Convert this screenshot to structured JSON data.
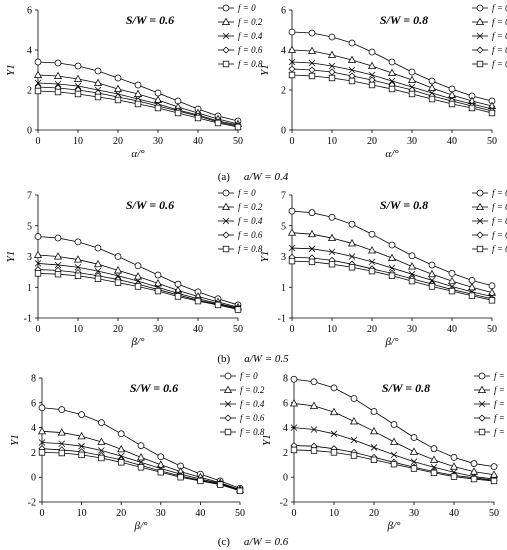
{
  "captions": [
    {
      "label": "(a)",
      "text": "a/W = 0.4"
    },
    {
      "label": "(b)",
      "text": "a/W = 0.5"
    },
    {
      "label": "(c)",
      "text": "a/W = 0.6"
    }
  ],
  "legend_entries": [
    "f = 0",
    "f = 0.2",
    "f = 0.4",
    "f = 0.6",
    "f = 0.8"
  ],
  "markers": [
    "circle",
    "triangle",
    "cross",
    "diamond",
    "square"
  ],
  "chart_data": [
    {
      "type": "line",
      "title": "S/W = 0.6",
      "xlabel": "α/°",
      "ylabel": "Y1",
      "xlim": [
        0,
        50
      ],
      "ylim": [
        0,
        6
      ],
      "xticks": [
        0,
        10,
        20,
        30,
        40,
        50
      ],
      "yticks": [
        0,
        2,
        4,
        6
      ],
      "legend": "top-right",
      "grid": false,
      "x": [
        0,
        5,
        10,
        15,
        20,
        25,
        30,
        35,
        40,
        45,
        50
      ],
      "series": [
        {
          "name": "f = 0",
          "values": [
            3.4,
            3.35,
            3.2,
            2.95,
            2.6,
            2.25,
            1.85,
            1.45,
            1.05,
            0.7,
            0.45
          ]
        },
        {
          "name": "f = 0.2",
          "values": [
            2.75,
            2.7,
            2.55,
            2.35,
            2.05,
            1.8,
            1.5,
            1.15,
            0.85,
            0.55,
            0.3
          ]
        },
        {
          "name": "f = 0.4",
          "values": [
            2.35,
            2.3,
            2.2,
            2.0,
            1.8,
            1.55,
            1.3,
            1.0,
            0.75,
            0.45,
            0.25
          ]
        },
        {
          "name": "f = 0.6",
          "values": [
            2.15,
            2.1,
            2.0,
            1.85,
            1.65,
            1.45,
            1.2,
            0.95,
            0.7,
            0.4,
            0.2
          ]
        },
        {
          "name": "f = 0.8",
          "values": [
            1.95,
            1.9,
            1.8,
            1.65,
            1.5,
            1.3,
            1.1,
            0.85,
            0.6,
            0.35,
            0.15
          ]
        }
      ]
    },
    {
      "type": "line",
      "title": "S/W = 0.8",
      "xlabel": "α/°",
      "ylabel": "Y1",
      "xlim": [
        0,
        50
      ],
      "ylim": [
        0,
        6
      ],
      "xticks": [
        0,
        10,
        20,
        30,
        40,
        50
      ],
      "yticks": [
        0,
        2,
        4,
        6
      ],
      "legend": "top-right",
      "grid": false,
      "x": [
        0,
        5,
        10,
        15,
        20,
        25,
        30,
        35,
        40,
        45,
        50
      ],
      "series": [
        {
          "name": "f = 0",
          "values": [
            4.9,
            4.85,
            4.65,
            4.35,
            3.9,
            3.4,
            2.9,
            2.45,
            2.05,
            1.7,
            1.45
          ]
        },
        {
          "name": "f = 0.2",
          "values": [
            4.0,
            3.95,
            3.75,
            3.5,
            3.2,
            2.85,
            2.5,
            2.1,
            1.75,
            1.45,
            1.2
          ]
        },
        {
          "name": "f = 0.4",
          "values": [
            3.4,
            3.35,
            3.2,
            3.0,
            2.75,
            2.45,
            2.15,
            1.85,
            1.55,
            1.3,
            1.05
          ]
        },
        {
          "name": "f = 0.6",
          "values": [
            3.05,
            3.0,
            2.9,
            2.7,
            2.5,
            2.25,
            2.0,
            1.7,
            1.45,
            1.2,
            0.95
          ]
        },
        {
          "name": "f = 0.8",
          "values": [
            2.75,
            2.7,
            2.6,
            2.45,
            2.25,
            2.05,
            1.8,
            1.55,
            1.3,
            1.1,
            0.85
          ]
        }
      ]
    },
    {
      "type": "line",
      "title": "S/W = 0.6",
      "xlabel": "β/°",
      "ylabel": "Y1",
      "xlim": [
        0,
        50
      ],
      "ylim": [
        -1,
        7
      ],
      "xticks": [
        0,
        10,
        20,
        30,
        40,
        50
      ],
      "yticks": [
        -1,
        1,
        3,
        5,
        7
      ],
      "legend": "top-right",
      "grid": false,
      "x": [
        0,
        5,
        10,
        15,
        20,
        25,
        30,
        35,
        40,
        45,
        50
      ],
      "series": [
        {
          "name": "f = 0",
          "values": [
            4.3,
            4.2,
            3.95,
            3.55,
            3.0,
            2.4,
            1.8,
            1.2,
            0.7,
            0.25,
            -0.15
          ]
        },
        {
          "name": "f = 0.2",
          "values": [
            3.1,
            3.0,
            2.8,
            2.5,
            2.1,
            1.7,
            1.25,
            0.8,
            0.4,
            0.05,
            -0.3
          ]
        },
        {
          "name": "f = 0.4",
          "values": [
            2.55,
            2.45,
            2.3,
            2.05,
            1.75,
            1.4,
            1.0,
            0.6,
            0.25,
            -0.05,
            -0.35
          ]
        },
        {
          "name": "f = 0.6",
          "values": [
            2.15,
            2.1,
            1.95,
            1.75,
            1.5,
            1.2,
            0.85,
            0.5,
            0.15,
            -0.1,
            -0.4
          ]
        },
        {
          "name": "f = 0.8",
          "values": [
            1.9,
            1.85,
            1.75,
            1.55,
            1.3,
            1.05,
            0.75,
            0.4,
            0.1,
            -0.15,
            -0.45
          ]
        }
      ]
    },
    {
      "type": "line",
      "title": "S/W = 0.8",
      "xlabel": "β/°",
      "ylabel": "Y1",
      "xlim": [
        0,
        50
      ],
      "ylim": [
        -1,
        7
      ],
      "xticks": [
        0,
        10,
        20,
        30,
        40,
        50
      ],
      "yticks": [
        -1,
        1,
        3,
        5,
        7
      ],
      "legend": "top-right",
      "grid": false,
      "x": [
        0,
        5,
        10,
        15,
        20,
        25,
        30,
        35,
        40,
        45,
        50
      ],
      "series": [
        {
          "name": "f = 0",
          "values": [
            5.95,
            5.85,
            5.55,
            5.1,
            4.45,
            3.75,
            3.05,
            2.45,
            1.9,
            1.45,
            1.1
          ]
        },
        {
          "name": "f = 0.2",
          "values": [
            4.55,
            4.45,
            4.2,
            3.85,
            3.4,
            2.9,
            2.35,
            1.85,
            1.4,
            1.0,
            0.65
          ]
        },
        {
          "name": "f = 0.4",
          "values": [
            3.55,
            3.5,
            3.3,
            3.0,
            2.65,
            2.25,
            1.85,
            1.45,
            1.05,
            0.7,
            0.4
          ]
        },
        {
          "name": "f = 0.6",
          "values": [
            2.95,
            2.9,
            2.75,
            2.5,
            2.2,
            1.9,
            1.55,
            1.2,
            0.85,
            0.55,
            0.25
          ]
        },
        {
          "name": "f = 0.8",
          "values": [
            2.7,
            2.65,
            2.5,
            2.3,
            2.05,
            1.75,
            1.4,
            1.05,
            0.75,
            0.45,
            0.15
          ]
        }
      ]
    },
    {
      "type": "line",
      "title": "S/W = 0.6",
      "xlabel": "β/°",
      "ylabel": "Y1",
      "xlim": [
        0,
        50
      ],
      "ylim": [
        -2,
        8
      ],
      "xticks": [
        0,
        10,
        20,
        30,
        40,
        50
      ],
      "yticks": [
        -2,
        0,
        2,
        4,
        6,
        8
      ],
      "legend": "top-right",
      "grid": false,
      "x": [
        0,
        5,
        10,
        15,
        20,
        25,
        30,
        35,
        40,
        45,
        50
      ],
      "series": [
        {
          "name": "f = 0",
          "values": [
            5.6,
            5.45,
            5.05,
            4.4,
            3.5,
            2.55,
            1.65,
            0.9,
            0.25,
            -0.3,
            -0.9
          ]
        },
        {
          "name": "f = 0.2",
          "values": [
            3.7,
            3.6,
            3.3,
            2.85,
            2.25,
            1.6,
            1.0,
            0.45,
            0.0,
            -0.45,
            -1.0
          ]
        },
        {
          "name": "f = 0.4",
          "values": [
            2.8,
            2.7,
            2.5,
            2.15,
            1.7,
            1.2,
            0.7,
            0.25,
            -0.15,
            -0.5,
            -1.0
          ]
        },
        {
          "name": "f = 0.6",
          "values": [
            2.3,
            2.2,
            2.05,
            1.75,
            1.4,
            0.95,
            0.5,
            0.1,
            -0.25,
            -0.55,
            -1.05
          ]
        },
        {
          "name": "f = 0.8",
          "values": [
            2.0,
            1.95,
            1.8,
            1.55,
            1.2,
            0.8,
            0.4,
            0.0,
            -0.3,
            -0.6,
            -1.1
          ]
        }
      ]
    },
    {
      "type": "line",
      "title": "S/W = 0.8",
      "xlabel": "β/°",
      "ylabel": "Y1",
      "xlim": [
        0,
        50
      ],
      "ylim": [
        -2,
        8
      ],
      "xticks": [
        0,
        10,
        20,
        30,
        40,
        50
      ],
      "yticks": [
        -2,
        0,
        2,
        4,
        6,
        8
      ],
      "legend": "top-right",
      "grid": false,
      "x": [
        0,
        5,
        10,
        15,
        20,
        25,
        30,
        35,
        40,
        45,
        50
      ],
      "series": [
        {
          "name": "f = 0",
          "values": [
            7.9,
            7.7,
            7.2,
            6.35,
            5.3,
            4.25,
            3.2,
            2.3,
            1.6,
            1.1,
            0.85
          ]
        },
        {
          "name": "f = 0.2",
          "values": [
            5.95,
            5.75,
            5.25,
            4.5,
            3.7,
            2.85,
            2.05,
            1.4,
            0.85,
            0.45,
            0.2
          ]
        },
        {
          "name": "f = 0.4",
          "values": [
            4.0,
            3.85,
            3.5,
            3.0,
            2.4,
            1.8,
            1.25,
            0.8,
            0.4,
            0.05,
            -0.15
          ]
        },
        {
          "name": "f = 0.6",
          "values": [
            2.55,
            2.5,
            2.3,
            2.0,
            1.6,
            1.2,
            0.8,
            0.45,
            0.15,
            -0.05,
            -0.25
          ]
        },
        {
          "name": "f = 0.8",
          "values": [
            2.2,
            2.15,
            2.0,
            1.75,
            1.4,
            1.05,
            0.7,
            0.35,
            0.05,
            -0.15,
            -0.3
          ]
        }
      ]
    }
  ]
}
